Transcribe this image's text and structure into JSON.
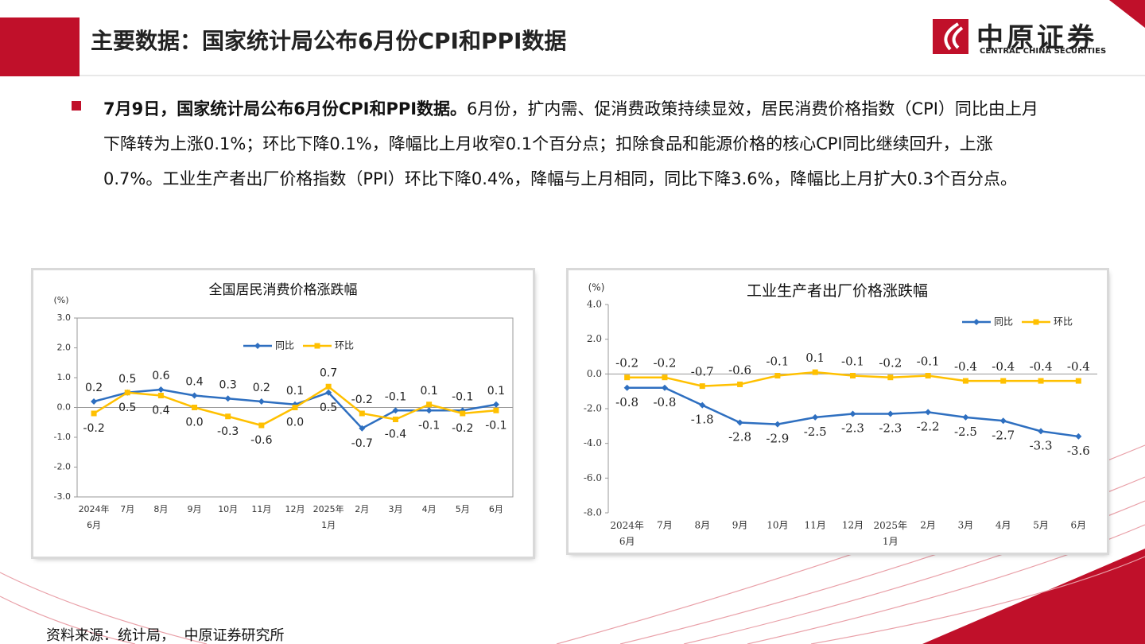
{
  "header": {
    "title": "主要数据：国家统计局公布6月份CPI和PPI数据",
    "logo_cn": "中原证券",
    "logo_en": "CENTRAL CHINA SECURITIES"
  },
  "bullet": {
    "lead": "7月9日，国家统计局公布6月份CPI和PPI数据。",
    "text": "6月份，扩内需、促消费政策持续显效，居民消费价格指数（CPI）同比由上月下降转为上涨0.1%；环比下降0.1%，降幅比上月收窄0.1个百分点；扣除食品和能源价格的核心CPI同比继续回升，上涨0.7%。工业生产者出厂价格指数（PPI）环比下降0.4%，降幅与上月相同，同比下降3.6%，降幅比上月扩大0.3个百分点。"
  },
  "source": "资料来源：统计局，  中原证券研究所",
  "chart_data": [
    {
      "type": "line",
      "title": "全国居民消费价格涨跌幅",
      "y_unit": "(%)",
      "categories": [
        "2024年6月",
        "7月",
        "8月",
        "9月",
        "10月",
        "11月",
        "12月",
        "2025年1月",
        "2月",
        "3月",
        "4月",
        "5月",
        "6月"
      ],
      "series": [
        {
          "name": "同比",
          "color": "#2e6fc0",
          "marker": "diamond",
          "values": [
            0.2,
            0.5,
            0.6,
            0.4,
            0.3,
            0.2,
            0.1,
            0.5,
            -0.7,
            -0.1,
            -0.1,
            -0.1,
            0.1
          ],
          "value_labels": [
            "0.2",
            "0.5",
            "0.6",
            "0.4",
            "0.3",
            "0.2",
            "0.1",
            "0.5",
            "-0.7",
            "-0.1",
            "-0.1",
            "-0.1",
            "0.1"
          ]
        },
        {
          "name": "环比",
          "color": "#ffc000",
          "marker": "square",
          "values": [
            -0.2,
            0.5,
            0.4,
            0.0,
            -0.3,
            -0.6,
            0.0,
            0.7,
            -0.2,
            -0.4,
            0.1,
            -0.2,
            -0.1
          ],
          "value_labels": [
            "-0.2",
            "0.5",
            "0.4",
            "0.0",
            "-0.3",
            "-0.6",
            "0.0",
            "0.7",
            "-0.2",
            "-0.4",
            "0.1",
            "-0.2",
            "-0.1"
          ]
        }
      ],
      "ylim": [
        -3,
        3
      ],
      "yticks": [
        {
          "value": 3,
          "label": "3.0"
        },
        {
          "value": 2,
          "label": "2.0"
        },
        {
          "value": 1,
          "label": "1.0"
        },
        {
          "value": 0,
          "label": "0.0"
        },
        {
          "value": -1,
          "label": "-1.0"
        },
        {
          "value": -2,
          "label": "-2.0"
        },
        {
          "value": -3,
          "label": "-3.0"
        }
      ],
      "grid": false,
      "legend": "upper center"
    },
    {
      "type": "line",
      "title": "工业生产者出厂价格涨跌幅",
      "y_unit": "(%)",
      "categories": [
        "2024年6月",
        "7月",
        "8月",
        "9月",
        "10月",
        "11月",
        "12月",
        "2025年1月",
        "2月",
        "3月",
        "4月",
        "5月",
        "6月"
      ],
      "series": [
        {
          "name": "同比",
          "color": "#2e6fc0",
          "marker": "diamond",
          "values": [
            -0.8,
            -0.8,
            -1.8,
            -2.8,
            -2.9,
            -2.5,
            -2.3,
            -2.3,
            -2.2,
            -2.5,
            -2.7,
            -3.3,
            -3.6
          ]
        },
        {
          "name": "环比",
          "color": "#ffc000",
          "marker": "square",
          "values": [
            -0.2,
            -0.2,
            -0.7,
            -0.6,
            -0.1,
            0.1,
            -0.1,
            -0.2,
            -0.1,
            -0.4,
            -0.4,
            -0.4,
            -0.4
          ]
        }
      ],
      "ylim": [
        -8,
        4
      ],
      "yticks": [
        {
          "value": 4,
          "label": "4.0"
        },
        {
          "value": 2,
          "label": "2.0"
        },
        {
          "value": 0,
          "label": "0.0"
        },
        {
          "value": -2,
          "label": "-2.0"
        },
        {
          "value": -4,
          "label": "-4.0"
        },
        {
          "value": -6,
          "label": "-6.0"
        },
        {
          "value": -8,
          "label": "-8.0"
        }
      ],
      "grid": false,
      "legend": "upper right"
    }
  ]
}
